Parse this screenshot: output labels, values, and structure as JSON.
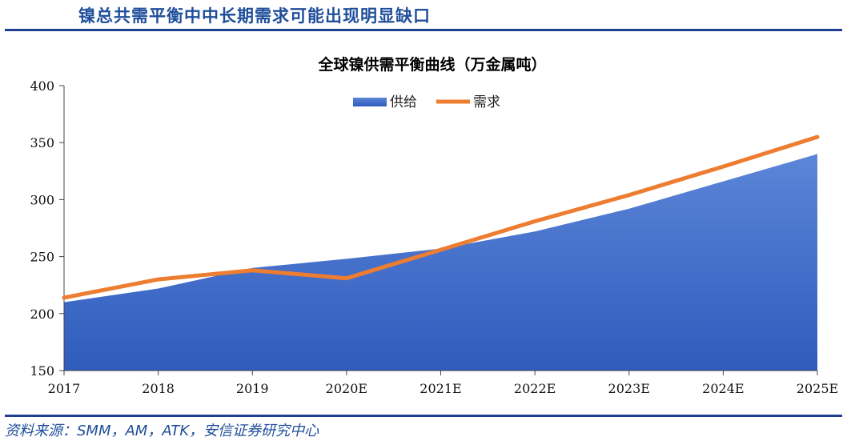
{
  "header": {
    "title": "镍总共需平衡中中长期需求可能出现明显缺口"
  },
  "footer": {
    "source": "资料来源：SMM，AM，ATK，安信证券研究中心"
  },
  "colors": {
    "supply": "#3a68c6",
    "demand": "#ed7d31",
    "rule": "#1f3f93",
    "header_text": "#1f4e9a"
  },
  "chart_data": {
    "type": "area",
    "title": "全球镍供需平衡曲线（万金属吨）",
    "xlabel": "",
    "ylabel": "",
    "categories": [
      "2017",
      "2018",
      "2019",
      "2020E",
      "2021E",
      "2022E",
      "2023E",
      "2024E",
      "2025E"
    ],
    "ylim": [
      150,
      400
    ],
    "yticks": [
      150,
      200,
      250,
      300,
      350,
      400
    ],
    "grid": false,
    "legend_position": "top-center",
    "series": [
      {
        "name": "供给",
        "type": "area",
        "color": "#3a68c6",
        "values": [
          210,
          222,
          240,
          248,
          257,
          272,
          292,
          316,
          340
        ]
      },
      {
        "name": "需求",
        "type": "line",
        "color": "#ed7d31",
        "values": [
          214,
          230,
          238,
          231,
          256,
          281,
          304,
          329,
          355
        ]
      }
    ]
  }
}
